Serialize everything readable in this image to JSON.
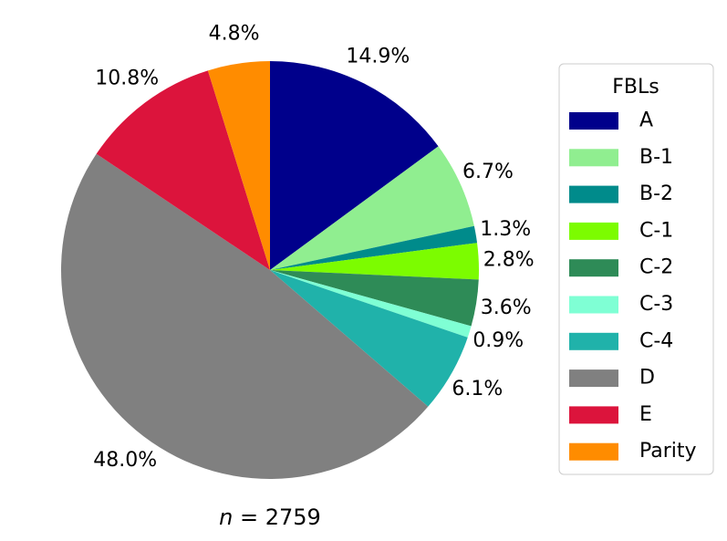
{
  "chart_data": {
    "type": "pie",
    "categories": [
      "A",
      "B-1",
      "B-2",
      "C-1",
      "C-2",
      "C-3",
      "C-4",
      "D",
      "E",
      "Parity"
    ],
    "values": [
      14.9,
      6.7,
      1.3,
      2.8,
      3.6,
      0.9,
      6.1,
      48.0,
      10.8,
      4.8
    ],
    "labels": [
      "14.9%",
      "6.7%",
      "1.3%",
      "2.8%",
      "3.6%",
      "0.9%",
      "6.1%",
      "48.0%",
      "10.8%",
      "4.8%"
    ],
    "colors": [
      "#00008b",
      "#90ee90",
      "#008b8b",
      "#7cfc00",
      "#2e8b57",
      "#7fffd4",
      "#20b2aa",
      "#808080",
      "#dc143c",
      "#ff8c00"
    ],
    "start_angle_deg": 90,
    "direction": "clockwise",
    "legend_title": "FBLs",
    "legend_position": "right",
    "n_label": {
      "var": "n",
      "rest": " = 2759"
    }
  }
}
